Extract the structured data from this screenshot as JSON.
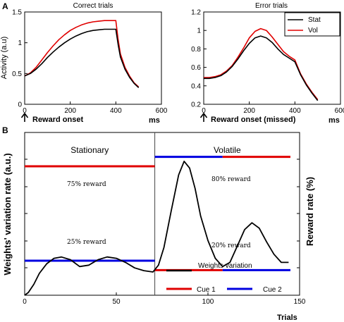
{
  "panel_labels": {
    "a": "A",
    "b": "B"
  },
  "chart_data": [
    {
      "type": "line",
      "title": "Correct trials",
      "ylabel": "Activity (a.u)",
      "xlabel": "ms",
      "annotation": "Reward onset",
      "xlim": [
        0,
        600
      ],
      "ylim": [
        0,
        1.5
      ],
      "xticks": [
        0,
        200,
        400,
        600
      ],
      "yticks": [
        0,
        0.5,
        1,
        1.5
      ],
      "tick_labels_x": [
        "0",
        "200",
        "400",
        "600"
      ],
      "tick_labels_y": [
        "0",
        "0.5",
        "1",
        "1.5"
      ],
      "series": [
        {
          "name": "Stat",
          "color": "#000000",
          "x": [
            0,
            25,
            50,
            75,
            100,
            125,
            150,
            175,
            200,
            225,
            250,
            275,
            300,
            325,
            350,
            375,
            400,
            410,
            420,
            440,
            460,
            480,
            500
          ],
          "y": [
            0.46,
            0.5,
            0.57,
            0.66,
            0.76,
            0.85,
            0.93,
            1.0,
            1.06,
            1.11,
            1.15,
            1.18,
            1.2,
            1.21,
            1.22,
            1.22,
            1.22,
            0.97,
            0.77,
            0.57,
            0.44,
            0.34,
            0.27
          ]
        },
        {
          "name": "Vol",
          "color": "#e00000",
          "x": [
            0,
            25,
            50,
            75,
            100,
            125,
            150,
            175,
            200,
            225,
            250,
            275,
            300,
            325,
            350,
            375,
            400,
            410,
            420,
            440,
            460,
            480,
            500
          ],
          "y": [
            0.46,
            0.51,
            0.6,
            0.72,
            0.84,
            0.95,
            1.05,
            1.13,
            1.2,
            1.25,
            1.29,
            1.32,
            1.34,
            1.35,
            1.36,
            1.36,
            1.36,
            1.05,
            0.82,
            0.6,
            0.46,
            0.35,
            0.28
          ]
        }
      ]
    },
    {
      "type": "line",
      "title": "Error trials",
      "xlabel": "ms",
      "annotation": "Reward onset (missed)",
      "xlim": [
        0,
        600
      ],
      "ylim": [
        0.2,
        1.2
      ],
      "xticks": [
        0,
        200,
        400,
        600
      ],
      "yticks": [
        0.2,
        0.4,
        0.6,
        0.8,
        1,
        1.2
      ],
      "tick_labels_x": [
        "0",
        "200",
        "400",
        "600"
      ],
      "tick_labels_y": [
        "0.2",
        "0.4",
        "0.6",
        "0.8",
        "1",
        "1.2"
      ],
      "legend": {
        "position": "top-right",
        "entries": [
          "Stat",
          "Vol"
        ]
      },
      "series": [
        {
          "name": "Stat",
          "color": "#000000",
          "x": [
            0,
            25,
            50,
            75,
            100,
            125,
            150,
            175,
            200,
            225,
            250,
            275,
            300,
            325,
            350,
            375,
            400,
            425,
            450,
            475,
            500
          ],
          "y": [
            0.48,
            0.48,
            0.49,
            0.51,
            0.55,
            0.61,
            0.69,
            0.78,
            0.86,
            0.92,
            0.94,
            0.92,
            0.87,
            0.8,
            0.74,
            0.7,
            0.66,
            0.52,
            0.41,
            0.32,
            0.24
          ]
        },
        {
          "name": "Vol",
          "color": "#e00000",
          "x": [
            0,
            25,
            50,
            75,
            100,
            125,
            150,
            175,
            200,
            225,
            250,
            275,
            300,
            325,
            350,
            375,
            400,
            425,
            450,
            475,
            500
          ],
          "y": [
            0.49,
            0.49,
            0.5,
            0.52,
            0.56,
            0.62,
            0.71,
            0.81,
            0.92,
            0.99,
            1.02,
            1.0,
            0.93,
            0.85,
            0.77,
            0.72,
            0.68,
            0.53,
            0.42,
            0.33,
            0.25
          ]
        }
      ]
    },
    {
      "type": "line",
      "ylabel": "Weights' variation rate (a.u.)",
      "ylabel_right": "Reward rate (%)",
      "xlabel": "Trials",
      "xlim": [
        0,
        150
      ],
      "xticks": [
        0,
        50,
        100,
        150
      ],
      "tick_labels_x": [
        "0",
        "50",
        "100",
        "150"
      ],
      "regions": [
        {
          "label": "Stationary",
          "from": 0,
          "to": 71
        },
        {
          "label": "Volatile",
          "from": 71,
          "to": 150
        }
      ],
      "divider_x": 71,
      "reward_labels": {
        "stat_high": "75% reward",
        "stat_low": "25% reward",
        "vol_high": "80% reward",
        "vol_low": "20% reward"
      },
      "reward_levels": [
        {
          "label": "75% reward",
          "cue": "Cue 1",
          "color": "#e00000",
          "x": [
            0,
            71
          ],
          "level": 75
        },
        {
          "label": "25% reward",
          "cue": "Cue 2",
          "color": "#0000e0",
          "x": [
            0,
            71
          ],
          "level": 25
        },
        {
          "label": "80% reward",
          "cue": "Cue 2",
          "color": "#0000e0",
          "x": [
            71,
            108
          ],
          "level": 80
        },
        {
          "label": "80% reward",
          "cue": "Cue 1",
          "color": "#e00000",
          "x": [
            108,
            145
          ],
          "level": 80
        },
        {
          "label": "20% reward",
          "cue": "Cue 1",
          "color": "#e00000",
          "x": [
            71,
            108
          ],
          "level": 20
        },
        {
          "label": "20% reward",
          "cue": "Cue 2",
          "color": "#0000e0",
          "x": [
            108,
            145
          ],
          "level": 20
        }
      ],
      "legend": {
        "position": "bottom-right",
        "entries": [
          "Weights variation",
          "Cue 1",
          "Cue 2"
        ]
      },
      "series": [
        {
          "name": "Weights variation",
          "color": "#000000",
          "x": [
            0,
            2,
            5,
            8,
            12,
            16,
            20,
            25,
            30,
            35,
            40,
            45,
            50,
            55,
            60,
            65,
            70,
            73,
            76,
            80,
            84,
            87,
            90,
            93,
            96,
            100,
            104,
            108,
            112,
            116,
            120,
            124,
            128,
            132,
            136,
            140,
            144
          ],
          "y": [
            0.0,
            0.02,
            0.08,
            0.16,
            0.23,
            0.27,
            0.28,
            0.26,
            0.21,
            0.22,
            0.26,
            0.28,
            0.27,
            0.24,
            0.2,
            0.18,
            0.17,
            0.22,
            0.35,
            0.62,
            0.88,
            0.98,
            0.93,
            0.78,
            0.58,
            0.4,
            0.27,
            0.21,
            0.24,
            0.36,
            0.48,
            0.53,
            0.49,
            0.39,
            0.3,
            0.24,
            0.24
          ]
        }
      ]
    }
  ]
}
